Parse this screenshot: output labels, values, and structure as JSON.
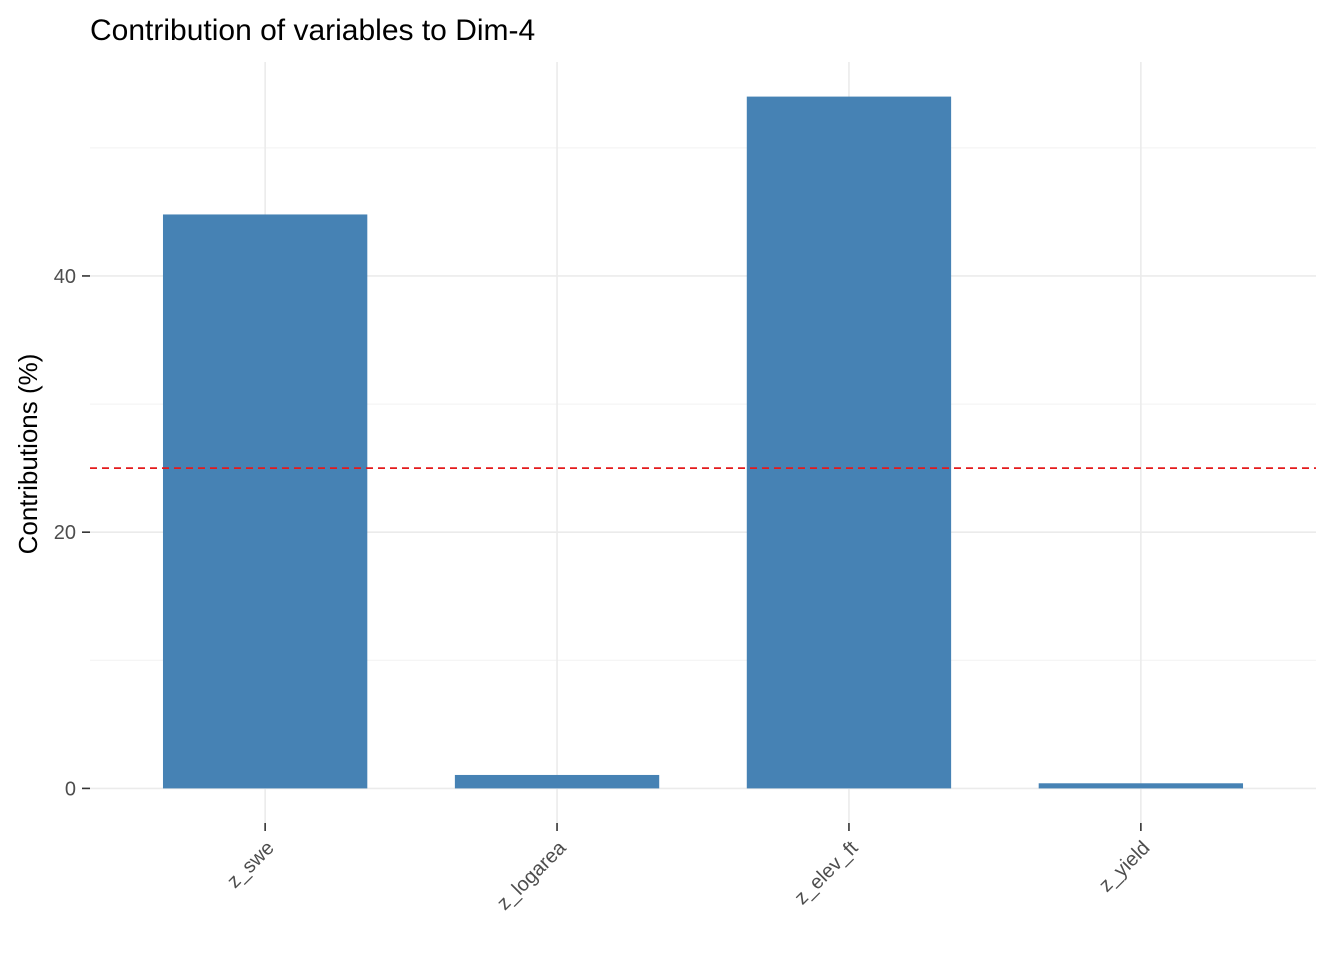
{
  "chart_data": {
    "type": "bar",
    "title": "Contribution of variables to Dim-4",
    "xlabel": "",
    "ylabel": "Contributions (%)",
    "categories": [
      "z_swe",
      "z_logarea",
      "z_elev_ft",
      "z_yield"
    ],
    "values": [
      44.8,
      1.05,
      54.0,
      0.4
    ],
    "ylim": [
      -2.7,
      56.7
    ],
    "yticks": [
      0,
      20,
      40
    ],
    "y_minor_ticks": [
      10,
      30,
      50
    ],
    "reference_line": 25,
    "grid": true,
    "legend": "none",
    "colors": {
      "bar": "#4682b4",
      "reference_line": "#e41a1c"
    }
  }
}
